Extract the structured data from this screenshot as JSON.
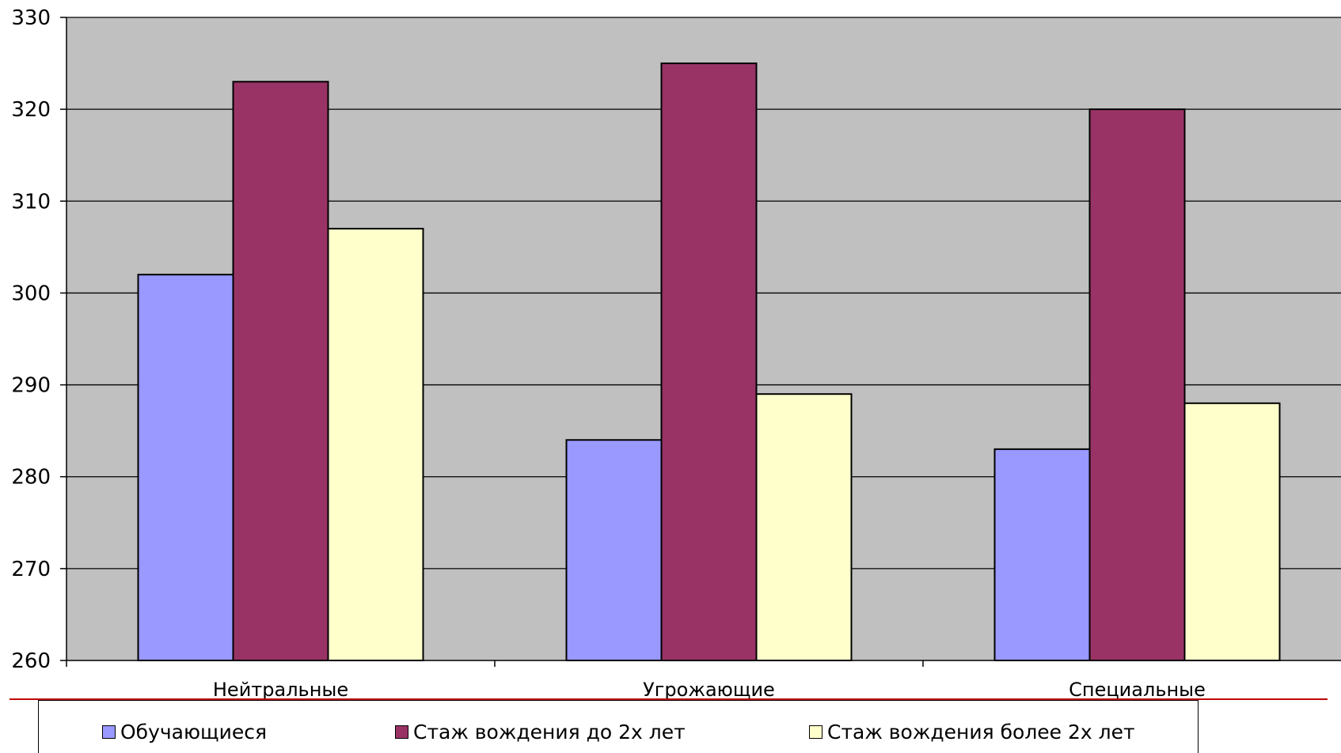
{
  "chart_data": {
    "type": "bar",
    "categories": [
      "Нейтральные",
      "Угрожающие",
      "Специальные"
    ],
    "series": [
      {
        "name": "Обучающиеся",
        "values": [
          302,
          284,
          283
        ],
        "color": "#9999ff"
      },
      {
        "name": "Стаж вождения до 2х лет",
        "values": [
          323,
          325,
          320
        ],
        "color": "#993366"
      },
      {
        "name": "Стаж вождения более 2х лет",
        "values": [
          307,
          289,
          288
        ],
        "color": "#ffffcc"
      }
    ],
    "ylim": [
      260,
      330
    ],
    "yticks": [
      260,
      270,
      280,
      290,
      300,
      310,
      320,
      330
    ],
    "ytick_labels": [
      "260",
      "270",
      "280",
      "290",
      "300",
      "310",
      "320",
      "330"
    ],
    "grid": true,
    "plot_background": "#c0c0c0",
    "legend_position": "bottom"
  }
}
